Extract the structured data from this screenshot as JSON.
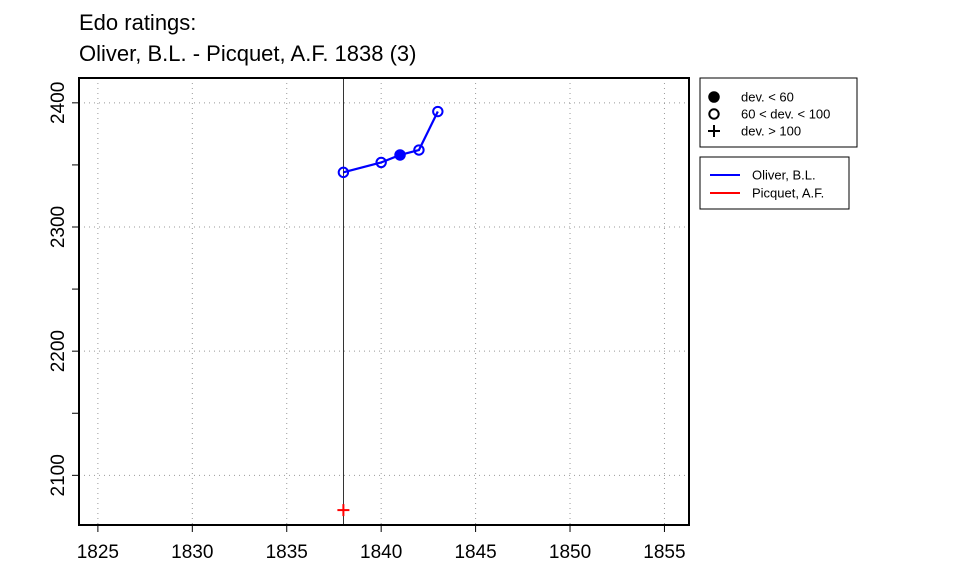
{
  "title_line1": "Edo ratings:",
  "title_line2": "Oliver, B.L. - Picquet, A.F. 1838 (3)",
  "chart_data": {
    "type": "scatter",
    "title": "Edo ratings:\nOliver, B.L. - Picquet, A.F. 1838 (3)",
    "xlabel": "",
    "ylabel": "",
    "xlim": [
      1824,
      1856.3
    ],
    "ylim": [
      2060,
      2420
    ],
    "x_ticks": [
      1825,
      1830,
      1835,
      1840,
      1845,
      1850,
      1855
    ],
    "y_ticks": [
      2100,
      2200,
      2300,
      2400
    ],
    "y_minor_ticks": [
      2150,
      2250,
      2350
    ],
    "grid": true,
    "match_year_marker": 1838,
    "series": [
      {
        "name": "Oliver, B.L.",
        "color": "#0000ff",
        "connected": true,
        "points": [
          {
            "x": 1838,
            "y": 2344,
            "marker": "open"
          },
          {
            "x": 1840,
            "y": 2352,
            "marker": "open"
          },
          {
            "x": 1841,
            "y": 2358,
            "marker": "filled"
          },
          {
            "x": 1842,
            "y": 2362,
            "marker": "open"
          },
          {
            "x": 1843,
            "y": 2393,
            "marker": "open"
          }
        ]
      },
      {
        "name": "Picquet, A.F.",
        "color": "#ff0000",
        "connected": false,
        "points": [
          {
            "x": 1838,
            "y": 2072,
            "marker": "plus"
          }
        ]
      }
    ],
    "marker_legend": [
      {
        "symbol": "filled",
        "label": "dev. < 60"
      },
      {
        "symbol": "open",
        "label": "60 < dev. < 100"
      },
      {
        "symbol": "plus",
        "label": "dev. > 100"
      }
    ],
    "legend_placement": "top-right, outside plot"
  }
}
